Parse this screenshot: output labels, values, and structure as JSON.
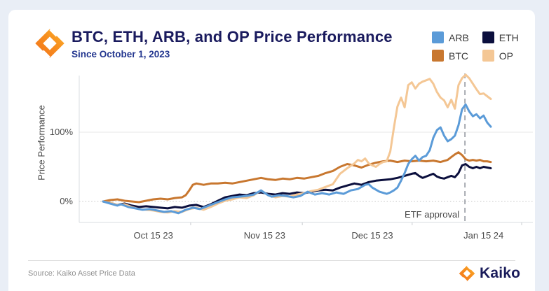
{
  "page": {
    "background": "#e9eef6",
    "card_background": "#ffffff"
  },
  "header": {
    "title": "BTC, ETH, ARB, and OP Price Performance",
    "subtitle": "Since October 1, 2023",
    "title_color": "#1a1b5e",
    "subtitle_color": "#23368f"
  },
  "brand": {
    "logo_icon": "kaiko-diamond-icon",
    "orange_dark": "#f2711c",
    "orange_light": "#fcb42d"
  },
  "legend": {
    "items": [
      {
        "label": "ARB",
        "color": "#5b9bd8"
      },
      {
        "label": "ETH",
        "color": "#0b0f3d"
      },
      {
        "label": "BTC",
        "color": "#c8772f"
      },
      {
        "label": "OP",
        "color": "#f4c795"
      }
    ]
  },
  "chart_data": {
    "type": "line",
    "title": "BTC, ETH, ARB, and OP Price Performance",
    "subtitle": "Since October 1, 2023",
    "xlabel": "",
    "ylabel": "Price Performance",
    "x_unit": "days since Oct 1 2023",
    "ylim": [
      -25,
      190
    ],
    "grid": "horizontal-only",
    "legend_position": "top-right",
    "y_ticks": [
      {
        "value": 0,
        "label": "0%"
      },
      {
        "value": 100,
        "label": "100%"
      }
    ],
    "x_ticks": [
      {
        "day": 14,
        "label": "Oct 15 23"
      },
      {
        "day": 45,
        "label": "Nov 15 23"
      },
      {
        "day": 75,
        "label": "Dec 15 23"
      },
      {
        "day": 106,
        "label": "Jan 15 24"
      }
    ],
    "x_minor_tick_days": [
      24.4,
      55.5,
      86.1,
      116.6
    ],
    "annotation": {
      "label": "ETF approval",
      "day": 100.8
    },
    "series": [
      {
        "name": "ETH",
        "color": "#0b0f3d",
        "points": [
          [
            0,
            0
          ],
          [
            2,
            -2
          ],
          [
            4,
            -5
          ],
          [
            6,
            -3
          ],
          [
            8,
            -6
          ],
          [
            10,
            -8
          ],
          [
            12,
            -7
          ],
          [
            14,
            -8
          ],
          [
            16,
            -9
          ],
          [
            18,
            -10
          ],
          [
            20,
            -8
          ],
          [
            22,
            -9
          ],
          [
            24,
            -6
          ],
          [
            26,
            -5
          ],
          [
            28,
            -8
          ],
          [
            30,
            -4
          ],
          [
            32,
            1
          ],
          [
            34,
            6
          ],
          [
            36,
            8
          ],
          [
            38,
            10
          ],
          [
            40,
            9
          ],
          [
            42,
            12
          ],
          [
            44,
            13
          ],
          [
            46,
            11
          ],
          [
            48,
            10
          ],
          [
            50,
            12
          ],
          [
            52,
            11
          ],
          [
            54,
            13
          ],
          [
            56,
            12
          ],
          [
            58,
            14
          ],
          [
            60,
            16
          ],
          [
            62,
            17
          ],
          [
            64,
            16
          ],
          [
            66,
            20
          ],
          [
            68,
            23
          ],
          [
            70,
            26
          ],
          [
            72,
            24
          ],
          [
            74,
            28
          ],
          [
            76,
            30
          ],
          [
            78,
            31
          ],
          [
            80,
            32
          ],
          [
            82,
            34
          ],
          [
            84,
            37
          ],
          [
            86,
            40
          ],
          [
            87,
            41
          ],
          [
            88,
            37
          ],
          [
            89,
            34
          ],
          [
            90,
            36
          ],
          [
            91,
            38
          ],
          [
            92,
            40
          ],
          [
            93,
            36
          ],
          [
            94,
            34
          ],
          [
            95,
            33
          ],
          [
            96,
            35
          ],
          [
            97,
            37
          ],
          [
            98,
            35
          ],
          [
            99,
            41
          ],
          [
            100,
            52
          ],
          [
            101,
            54
          ],
          [
            102,
            50
          ],
          [
            103,
            48
          ],
          [
            104,
            50
          ],
          [
            105,
            48
          ],
          [
            106,
            50
          ],
          [
            107,
            49
          ],
          [
            108,
            48
          ]
        ]
      },
      {
        "name": "BTC",
        "color": "#c8772f",
        "points": [
          [
            0,
            0
          ],
          [
            2,
            2
          ],
          [
            4,
            3
          ],
          [
            6,
            1
          ],
          [
            8,
            0
          ],
          [
            10,
            -1
          ],
          [
            12,
            1
          ],
          [
            14,
            3
          ],
          [
            16,
            4
          ],
          [
            18,
            3
          ],
          [
            20,
            5
          ],
          [
            22,
            6
          ],
          [
            23,
            9
          ],
          [
            24,
            16
          ],
          [
            25,
            24
          ],
          [
            26,
            26
          ],
          [
            28,
            24
          ],
          [
            30,
            26
          ],
          [
            32,
            26
          ],
          [
            34,
            27
          ],
          [
            36,
            26
          ],
          [
            38,
            28
          ],
          [
            40,
            30
          ],
          [
            42,
            32
          ],
          [
            44,
            34
          ],
          [
            46,
            32
          ],
          [
            48,
            31
          ],
          [
            50,
            33
          ],
          [
            52,
            32
          ],
          [
            54,
            34
          ],
          [
            56,
            33
          ],
          [
            58,
            35
          ],
          [
            60,
            37
          ],
          [
            62,
            41
          ],
          [
            64,
            44
          ],
          [
            66,
            50
          ],
          [
            68,
            54
          ],
          [
            70,
            52
          ],
          [
            72,
            49
          ],
          [
            74,
            53
          ],
          [
            76,
            56
          ],
          [
            78,
            58
          ],
          [
            80,
            59
          ],
          [
            82,
            57
          ],
          [
            84,
            59
          ],
          [
            86,
            58
          ],
          [
            88,
            59
          ],
          [
            90,
            58
          ],
          [
            92,
            59
          ],
          [
            94,
            57
          ],
          [
            96,
            60
          ],
          [
            97,
            64
          ],
          [
            98,
            68
          ],
          [
            99,
            71
          ],
          [
            100,
            67
          ],
          [
            101,
            61
          ],
          [
            102,
            59
          ],
          [
            103,
            60
          ],
          [
            104,
            59
          ],
          [
            105,
            60
          ],
          [
            106,
            58
          ],
          [
            107,
            58
          ],
          [
            108,
            57
          ]
        ]
      },
      {
        "name": "OP",
        "color": "#f4c795",
        "points": [
          [
            0,
            0
          ],
          [
            2,
            -2
          ],
          [
            4,
            -5
          ],
          [
            6,
            -4
          ],
          [
            8,
            -8
          ],
          [
            10,
            -11
          ],
          [
            12,
            -12
          ],
          [
            14,
            -13
          ],
          [
            16,
            -15
          ],
          [
            18,
            -16
          ],
          [
            20,
            -14
          ],
          [
            22,
            -15
          ],
          [
            24,
            -11
          ],
          [
            26,
            -9
          ],
          [
            28,
            -12
          ],
          [
            30,
            -8
          ],
          [
            32,
            -3
          ],
          [
            34,
            1
          ],
          [
            36,
            3
          ],
          [
            38,
            6
          ],
          [
            40,
            5
          ],
          [
            42,
            9
          ],
          [
            44,
            16
          ],
          [
            46,
            9
          ],
          [
            48,
            6
          ],
          [
            50,
            8
          ],
          [
            52,
            7
          ],
          [
            54,
            10
          ],
          [
            56,
            12
          ],
          [
            58,
            15
          ],
          [
            60,
            17
          ],
          [
            62,
            21
          ],
          [
            64,
            25
          ],
          [
            66,
            40
          ],
          [
            68,
            48
          ],
          [
            70,
            55
          ],
          [
            71,
            60
          ],
          [
            72,
            58
          ],
          [
            73,
            62
          ],
          [
            74,
            55
          ],
          [
            75,
            52
          ],
          [
            76,
            50
          ],
          [
            77,
            54
          ],
          [
            78,
            57
          ],
          [
            79,
            58
          ],
          [
            80,
            72
          ],
          [
            81,
            106
          ],
          [
            82,
            137
          ],
          [
            83,
            150
          ],
          [
            84,
            136
          ],
          [
            85,
            168
          ],
          [
            86,
            172
          ],
          [
            87,
            163
          ],
          [
            88,
            170
          ],
          [
            89,
            173
          ],
          [
            90,
            175
          ],
          [
            91,
            177
          ],
          [
            92,
            170
          ],
          [
            93,
            158
          ],
          [
            94,
            150
          ],
          [
            95,
            146
          ],
          [
            96,
            136
          ],
          [
            97,
            147
          ],
          [
            98,
            134
          ],
          [
            99,
            168
          ],
          [
            100,
            178
          ],
          [
            101,
            183
          ],
          [
            102,
            178
          ],
          [
            103,
            170
          ],
          [
            104,
            162
          ],
          [
            105,
            155
          ],
          [
            106,
            156
          ],
          [
            107,
            152
          ],
          [
            108,
            148
          ]
        ]
      },
      {
        "name": "ARB",
        "color": "#5b9bd8",
        "points": [
          [
            0,
            0
          ],
          [
            2,
            -3
          ],
          [
            4,
            -6
          ],
          [
            5,
            -4
          ],
          [
            7,
            -8
          ],
          [
            9,
            -10
          ],
          [
            11,
            -12
          ],
          [
            13,
            -11
          ],
          [
            15,
            -13
          ],
          [
            17,
            -15
          ],
          [
            19,
            -14
          ],
          [
            21,
            -17
          ],
          [
            23,
            -12
          ],
          [
            25,
            -9
          ],
          [
            27,
            -11
          ],
          [
            29,
            -7
          ],
          [
            30,
            -5
          ],
          [
            32,
            -1
          ],
          [
            34,
            3
          ],
          [
            36,
            6
          ],
          [
            38,
            7
          ],
          [
            40,
            8
          ],
          [
            42,
            10
          ],
          [
            44,
            16
          ],
          [
            46,
            9
          ],
          [
            47,
            7
          ],
          [
            49,
            9
          ],
          [
            51,
            8
          ],
          [
            53,
            6
          ],
          [
            55,
            8
          ],
          [
            57,
            14
          ],
          [
            59,
            10
          ],
          [
            61,
            12
          ],
          [
            63,
            10
          ],
          [
            65,
            13
          ],
          [
            67,
            11
          ],
          [
            69,
            16
          ],
          [
            71,
            18
          ],
          [
            73,
            24
          ],
          [
            74,
            25
          ],
          [
            75,
            20
          ],
          [
            77,
            14
          ],
          [
            79,
            11
          ],
          [
            80,
            13
          ],
          [
            81,
            16
          ],
          [
            82,
            20
          ],
          [
            83,
            30
          ],
          [
            84,
            41
          ],
          [
            85,
            54
          ],
          [
            86,
            61
          ],
          [
            87,
            66
          ],
          [
            88,
            59
          ],
          [
            89,
            64
          ],
          [
            90,
            66
          ],
          [
            91,
            74
          ],
          [
            92,
            92
          ],
          [
            93,
            103
          ],
          [
            94,
            107
          ],
          [
            95,
            95
          ],
          [
            96,
            87
          ],
          [
            97,
            90
          ],
          [
            98,
            95
          ],
          [
            99,
            110
          ],
          [
            100,
            133
          ],
          [
            101,
            140
          ],
          [
            102,
            130
          ],
          [
            103,
            123
          ],
          [
            104,
            126
          ],
          [
            105,
            120
          ],
          [
            106,
            124
          ],
          [
            107,
            114
          ],
          [
            108,
            108
          ]
        ]
      }
    ]
  },
  "footer": {
    "source": "Source: Kaiko Asset Price Data",
    "wordmark": "Kaiko"
  }
}
